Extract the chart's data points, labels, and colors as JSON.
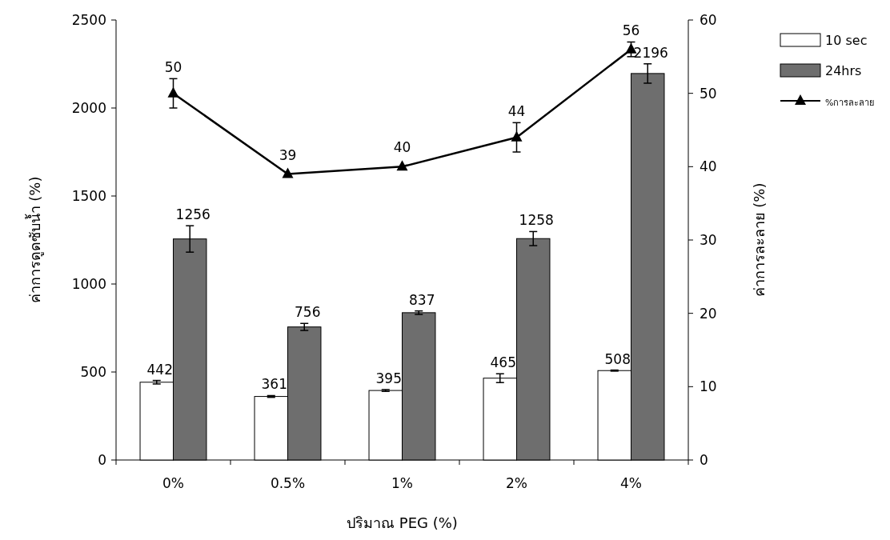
{
  "chart_data": {
    "type": "bar",
    "categories": [
      "0%",
      "0.5%",
      "1%",
      "2%",
      "4%"
    ],
    "xlabel": "ปริมาณ PEG (%)",
    "ylabel": "ค่าการดูดซับน้ำ (%)",
    "y2label": "ค่าการละลาย (%)",
    "ylim": [
      0,
      2500
    ],
    "yticks": [
      0,
      500,
      1000,
      1500,
      2000,
      2500
    ],
    "y2lim": [
      0,
      60
    ],
    "y2ticks": [
      0,
      10,
      20,
      30,
      40,
      50,
      60
    ],
    "legend": "top right",
    "data_labels": true,
    "grid": false,
    "series": [
      {
        "name": "10 sec",
        "color": "#ffffff",
        "values": [
          442,
          361,
          395,
          465,
          508
        ],
        "errors": [
          10,
          5,
          5,
          25,
          3
        ]
      },
      {
        "name": "24hrs",
        "color": "#6e6e6e",
        "values": [
          1256,
          756,
          837,
          1258,
          2196
        ],
        "errors": [
          75,
          20,
          10,
          40,
          55
        ]
      },
      {
        "name": "%การละลาย",
        "type": "line",
        "axis": "y2",
        "color": "#000000",
        "marker": "triangle",
        "line_style": "solid",
        "values": [
          50,
          39,
          40,
          44,
          56
        ],
        "errors": [
          2,
          null,
          null,
          2,
          1
        ]
      }
    ]
  }
}
